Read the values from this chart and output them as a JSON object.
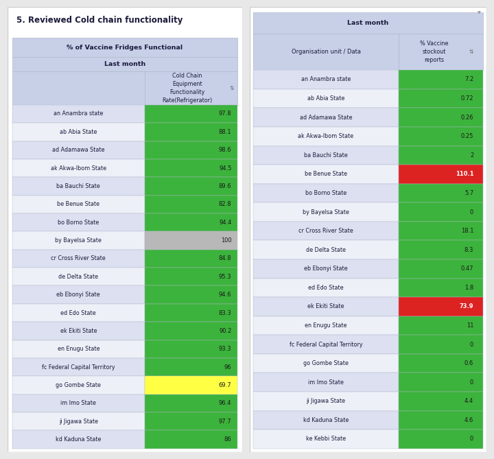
{
  "title_left": "5. Reviewed Cold chain functionality",
  "table1_header1": "% of Vaccine Fridges Functional",
  "table1_header2": "Last month",
  "table1_col_header": "Cold Chain\nEquipment\nFunctionality\nRate(Refrigerator)",
  "table2_header1": "Last month",
  "table2_col1_header": "Organisation unit / Data",
  "table2_col2_header": "% Vaccine\nstockout\nreports",
  "states": [
    "an Anambra state",
    "ab Abia State",
    "ad Adamawa State",
    "ak Akwa-Ibom State",
    "ba Bauchi State",
    "be Benue State",
    "bo Borno State",
    "by Bayelsa State",
    "cr Cross River State",
    "de Delta State",
    "eb Ebonyi State",
    "ed Edo State",
    "ek Ekiti State",
    "en Enugu State",
    "fc Federal Capital Territory",
    "go Gombe State",
    "im Imo State",
    "ji Jigawa State",
    "kd Kaduna State"
  ],
  "table1_values": [
    "97.8",
    "88.1",
    "98.6",
    "94.5",
    "89.6",
    "82.8",
    "94.4",
    "100",
    "84.8",
    "95.3",
    "94.6",
    "83.3",
    "90.2",
    "93.3",
    "96",
    "69.7",
    "96.4",
    "97.7",
    "86"
  ],
  "table1_colors": [
    "#3cb33c",
    "#3cb33c",
    "#3cb33c",
    "#3cb33c",
    "#3cb33c",
    "#3cb33c",
    "#3cb33c",
    "#b8b8b8",
    "#3cb33c",
    "#3cb33c",
    "#3cb33c",
    "#3cb33c",
    "#3cb33c",
    "#3cb33c",
    "#3cb33c",
    "#ffff44",
    "#3cb33c",
    "#3cb33c",
    "#3cb33c"
  ],
  "table2_values": [
    "7.2",
    "0.72",
    "0.26",
    "0.25",
    "2",
    "110.1",
    "5.7",
    "0",
    "18.1",
    "8.3",
    "0.47",
    "1.8",
    "73.9",
    "11",
    "0",
    "0.6",
    "0",
    "4.4",
    "4.6",
    "0"
  ],
  "table2_colors": [
    "#3cb33c",
    "#3cb33c",
    "#3cb33c",
    "#3cb33c",
    "#3cb33c",
    "#dd2222",
    "#3cb33c",
    "#3cb33c",
    "#3cb33c",
    "#3cb33c",
    "#3cb33c",
    "#3cb33c",
    "#dd2222",
    "#3cb33c",
    "#3cb33c",
    "#3cb33c",
    "#3cb33c",
    "#3cb33c",
    "#3cb33c",
    "#3cb33c"
  ],
  "states2": [
    "an Anambra state",
    "ab Abia State",
    "ad Adamawa State",
    "ak Akwa-Ibom State",
    "ba Bauchi State",
    "be Benue State",
    "bo Borno State",
    "by Bayelsa State",
    "cr Cross River State",
    "de Delta State",
    "eb Ebonyi State",
    "ed Edo State",
    "ek Ekiti State",
    "en Enugu State",
    "fc Federal Capital Territory",
    "go Gombe State",
    "im Imo State",
    "ji Jigawa State",
    "kd Kaduna State",
    "ke Kebbi State"
  ],
  "outer_bg": "#e8e8e8",
  "panel_bg": "#ffffff",
  "header_bg": "#c8d0e8",
  "row_bg_odd": "#dce0f0",
  "row_bg_even": "#eef0f8",
  "border_color": "#b0b8cc",
  "title_color": "#1a1a3a",
  "text_color": "#1a1a3a",
  "val_dark": "#1a1a1a",
  "val_white": "#ffffff",
  "sort_icon": "⇅"
}
